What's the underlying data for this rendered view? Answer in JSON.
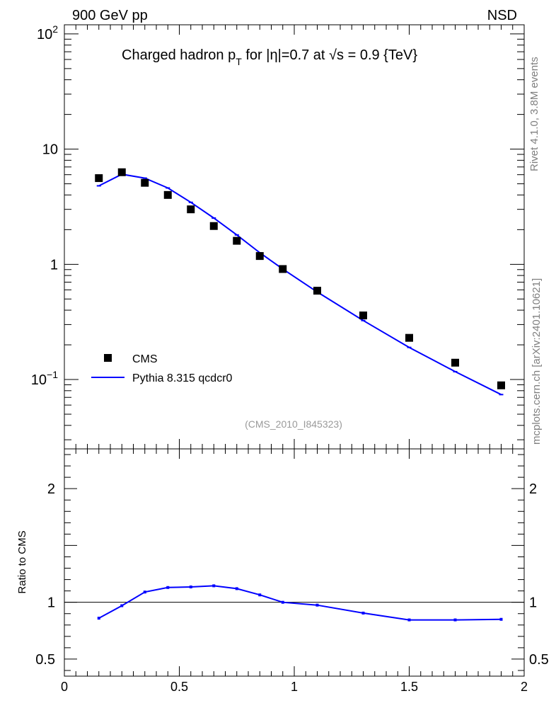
{
  "header": {
    "left": "900 GeV pp",
    "right": "NSD"
  },
  "side_text": {
    "rivet": "Rivet 4.1.0,  3.8M events",
    "mcplots": "mcplots.cern.ch [arXiv:2401.10621]"
  },
  "chart_data": {
    "type": "scatter",
    "title": "Charged hadron p_T for |η|=0.7 at √s = 0.9 {TeV}",
    "title_parts": {
      "prefix": "Charged hadron p",
      "sub": "T",
      "mid": " for |η|=0.7 at ",
      "root": "√",
      "s_val": "s = 0.9 {TeV}"
    },
    "analysis_label": "(CMS_2010_I845323)",
    "xlim": [
      0,
      2
    ],
    "ylim_main": [
      0.025,
      120
    ],
    "yscale_main": "log",
    "ylim_ratio": [
      0.35,
      2.35
    ],
    "ylabel_ratio": "Ratio to CMS",
    "x_ticks": [
      "0",
      "0.5",
      "1",
      "1.5",
      "2"
    ],
    "main_y_ticks": [
      {
        "value": 100,
        "base": "10",
        "exp": "2"
      },
      {
        "value": 10,
        "base": "10",
        "exp": ""
      },
      {
        "value": 1,
        "base": "1",
        "exp": ""
      },
      {
        "value": 0.1,
        "base": "10",
        "exp": "−1"
      }
    ],
    "ratio_y_ticks": [
      "0.5",
      "1",
      "2"
    ],
    "ratio_y_values": [
      0.5,
      1,
      2
    ],
    "legend": {
      "position": "bottom-left",
      "entries": [
        "CMS",
        "Pythia 8.315 qcdcr0"
      ]
    },
    "series": [
      {
        "name": "CMS",
        "style": "markers",
        "color": "#000000",
        "x": [
          0.15,
          0.25,
          0.35,
          0.45,
          0.55,
          0.65,
          0.75,
          0.85,
          0.95,
          1.1,
          1.3,
          1.5,
          1.7,
          1.9
        ],
        "y": [
          5.6,
          6.3,
          5.1,
          4.0,
          3.0,
          2.15,
          1.6,
          1.18,
          0.91,
          0.59,
          0.36,
          0.23,
          0.14,
          0.089
        ]
      },
      {
        "name": "Pythia 8.315 qcdcr0",
        "style": "line",
        "color": "#0000ff",
        "x": [
          0.15,
          0.25,
          0.35,
          0.45,
          0.55,
          0.65,
          0.75,
          0.85,
          0.95,
          1.1,
          1.3,
          1.5,
          1.7,
          1.9
        ],
        "y": [
          4.8,
          6.05,
          5.6,
          4.6,
          3.45,
          2.52,
          1.8,
          1.26,
          0.91,
          0.575,
          0.325,
          0.19,
          0.117,
          0.074
        ]
      }
    ],
    "ratio_series": {
      "name": "Pythia 8.315 qcdcr0 / CMS",
      "color": "#0000ff",
      "x": [
        0.15,
        0.25,
        0.35,
        0.45,
        0.55,
        0.65,
        0.75,
        0.85,
        0.95,
        1.1,
        1.3,
        1.5,
        1.7,
        1.9
      ],
      "y": [
        0.86,
        0.97,
        1.09,
        1.13,
        1.135,
        1.145,
        1.12,
        1.065,
        1.0,
        0.975,
        0.905,
        0.845,
        0.845,
        0.85
      ]
    }
  }
}
